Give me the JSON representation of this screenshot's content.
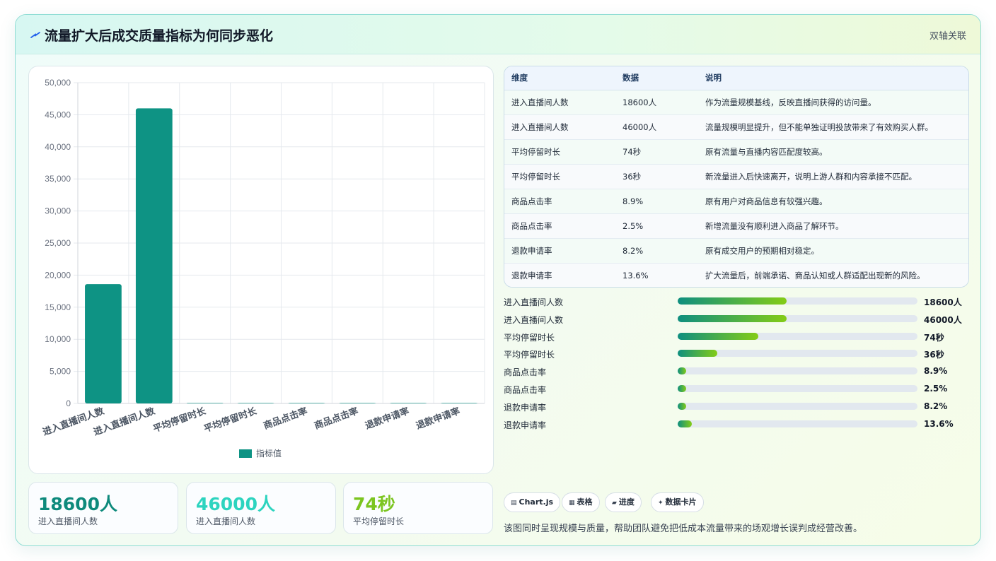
{
  "header": {
    "title": "流量扩大后成交质量指标为何同步恶化",
    "tag": "双轴关联",
    "icon": "spark-icon"
  },
  "chart_data": {
    "type": "bar",
    "categories": [
      "进入直播间人数",
      "进入直播间人数",
      "平均停留时长",
      "平均停留时长",
      "商品点击率",
      "商品点击率",
      "退款申请率",
      "退款申请率"
    ],
    "series": [
      {
        "name": "指标值",
        "values": [
          18600,
          46000,
          74,
          36,
          8.9,
          2.5,
          8.2,
          13.6
        ]
      }
    ],
    "y_ticks": [
      "0",
      "5,000",
      "10,000",
      "15,000",
      "20,000",
      "25,000",
      "30,000",
      "35,000",
      "40,000",
      "45,000",
      "50,000"
    ],
    "ylim": [
      0,
      50000
    ],
    "grid": true,
    "legend_position": "bottom",
    "color": "#0e9384"
  },
  "kpis": [
    {
      "value": "18600人",
      "label": "进入直播间人数",
      "color": "#0e8a7c"
    },
    {
      "value": "46000人",
      "label": "进入直播间人数",
      "color": "#2dd4bf"
    },
    {
      "value": "74秒",
      "label": "平均停留时长",
      "color": "#7cc520"
    }
  ],
  "table": {
    "headers": [
      "维度",
      "数据",
      "说明"
    ],
    "rows": [
      [
        "进入直播间人数",
        "18600人",
        "作为流量规模基线，反映直播间获得的访问量。"
      ],
      [
        "进入直播间人数",
        "46000人",
        "流量规模明显提升，但不能单独证明投放带来了有效购买人群。"
      ],
      [
        "平均停留时长",
        "74秒",
        "原有流量与直播内容匹配度较高。"
      ],
      [
        "平均停留时长",
        "36秒",
        "新流量进入后快速离开，说明上游人群和内容承接不匹配。"
      ],
      [
        "商品点击率",
        "8.9%",
        "原有用户对商品信息有较强兴趣。"
      ],
      [
        "商品点击率",
        "2.5%",
        "新增流量没有顺利进入商品了解环节。"
      ],
      [
        "退款申请率",
        "8.2%",
        "原有成交用户的预期相对稳定。"
      ],
      [
        "退款申请率",
        "13.6%",
        "扩大流量后，前端承诺、商品认知或人群适配出现新的风险。"
      ]
    ]
  },
  "progress": [
    {
      "label": "进入直播间人数",
      "value": "18600人",
      "fraction": 0.455
    },
    {
      "label": "进入直播间人数",
      "value": "46000人",
      "fraction": 0.455
    },
    {
      "label": "平均停留时长",
      "value": "74秒",
      "fraction": 0.337
    },
    {
      "label": "平均停留时长",
      "value": "36秒",
      "fraction": 0.164
    },
    {
      "label": "商品点击率",
      "value": "8.9%",
      "fraction": 0.034
    },
    {
      "label": "商品点击率",
      "value": "2.5%",
      "fraction": 0.034
    },
    {
      "label": "退款申请率",
      "value": "8.2%",
      "fraction": 0.034
    },
    {
      "label": "退款申请率",
      "value": "13.6%",
      "fraction": 0.058
    }
  ],
  "chips": [
    {
      "icon": "chart-icon",
      "glyph": "▤",
      "label": "Chart.js"
    },
    {
      "icon": "table-icon",
      "glyph": "▦",
      "label": "表格"
    },
    {
      "icon": "progress-icon",
      "glyph": "▰",
      "label": "进度"
    },
    {
      "icon": "card-icon",
      "glyph": "✦",
      "label": "数据卡片"
    }
  ],
  "summary": "该图同时呈现规模与质量，帮助团队避免把低成本流量带来的场观增长误判成经营改善。"
}
